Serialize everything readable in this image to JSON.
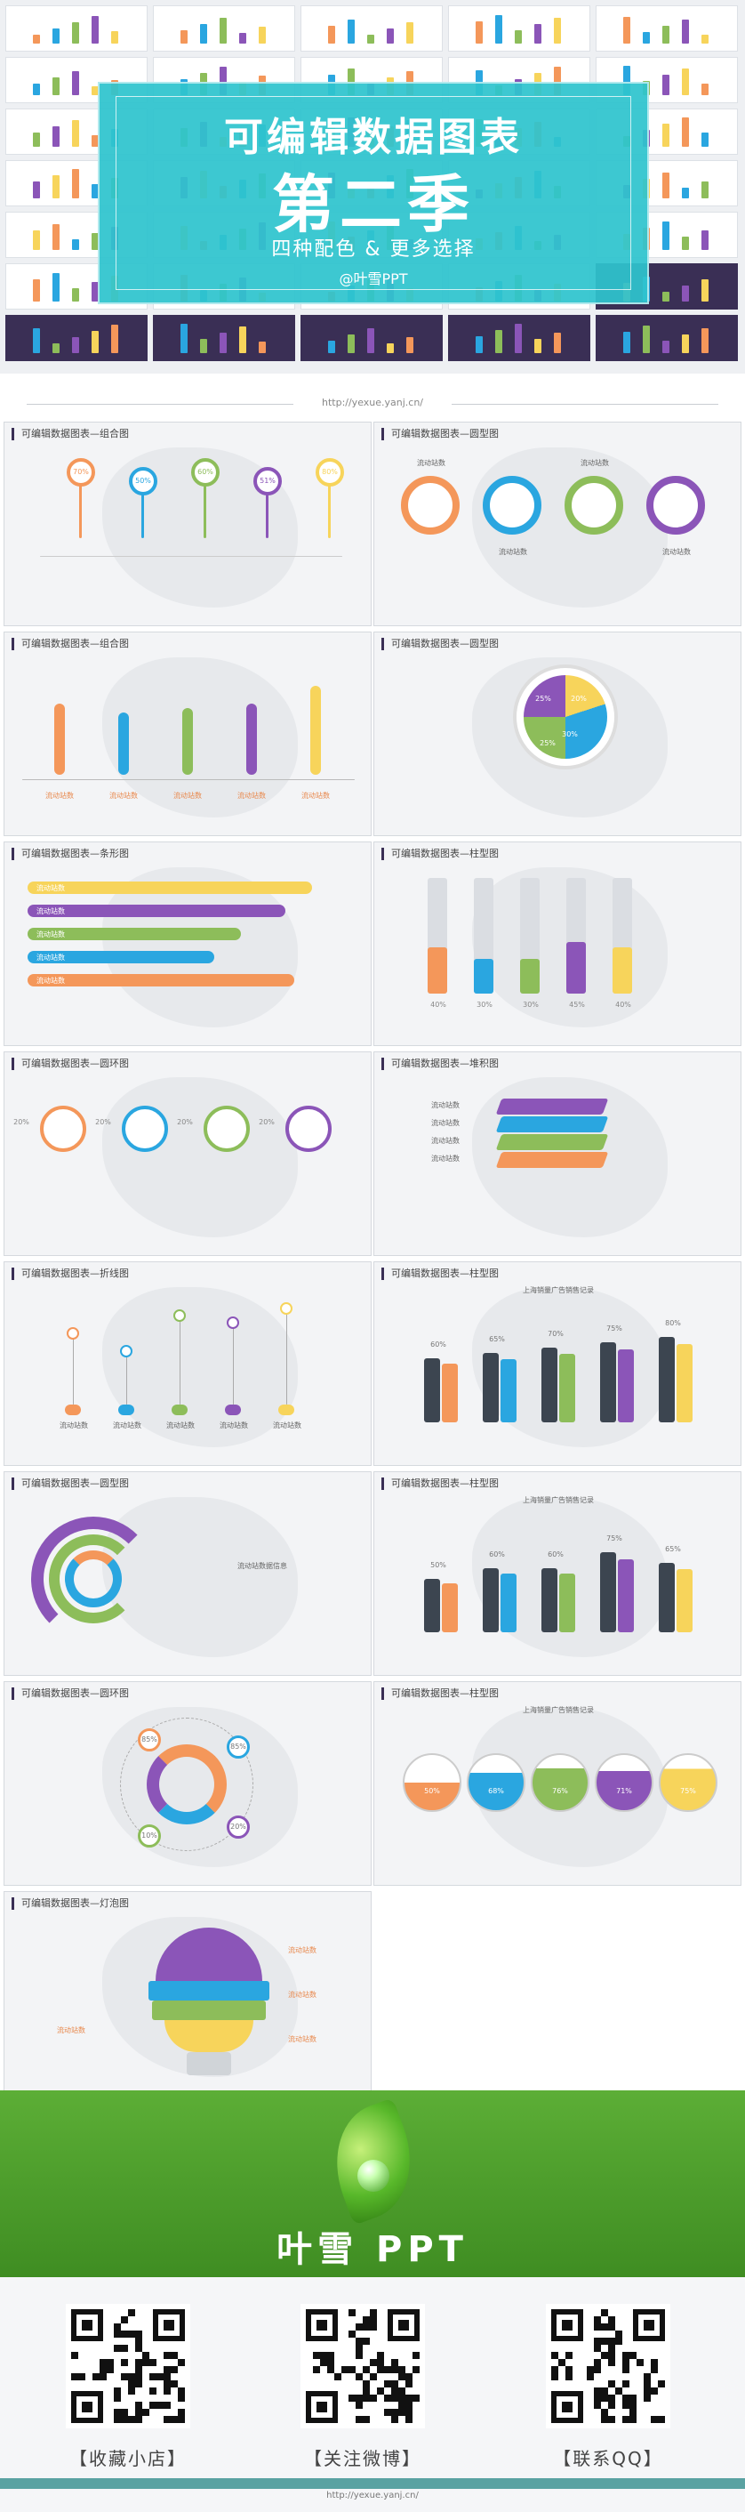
{
  "hero": {
    "title": "可编辑数据图表",
    "season": "第二季",
    "subtitle": "四种配色 & 更多选择",
    "brand": "@叶雪PPT",
    "url": "http://yexue.yanj.cn/"
  },
  "slides": [
    {
      "title": "可编辑数据图表—组合图",
      "labels": [
        "70%",
        "50%",
        "60%",
        "51%",
        "80%"
      ]
    },
    {
      "title": "可编辑数据图表—圆型图",
      "labels": [
        "流动站数",
        "流动站数",
        "流动站数",
        "流动站数"
      ]
    },
    {
      "title": "可编辑数据图表—组合图",
      "labels": [
        "流动站数",
        "流动站数",
        "流动站数",
        "流动站数",
        "流动站数"
      ]
    },
    {
      "title": "可编辑数据图表—圆型图",
      "labels": [
        "20%",
        "30%",
        "25%",
        "25%"
      ]
    },
    {
      "title": "可编辑数据图表—条形图",
      "labels": [
        "流动站数",
        "流动站数",
        "流动站数",
        "流动站数",
        "流动站数"
      ]
    },
    {
      "title": "可编辑数据图表—柱型图",
      "labels": [
        "40%",
        "30%",
        "30%",
        "45%",
        "40%"
      ]
    },
    {
      "title": "可编辑数据图表—圆环图",
      "labels": [
        "20%",
        "20%",
        "20%",
        "20%"
      ]
    },
    {
      "title": "可编辑数据图表—堆积图",
      "labels": [
        "流动站数",
        "流动站数",
        "流动站数",
        "流动站数"
      ]
    },
    {
      "title": "可编辑数据图表—折线图",
      "labels": [
        "流动站数",
        "流动站数",
        "流动站数",
        "流动站数",
        "流动站数"
      ]
    },
    {
      "title": "可编辑数据图表—柱型图",
      "labels": [
        "上海销量广告销售记录",
        "60%",
        "65%",
        "70%",
        "75%",
        "80%"
      ]
    },
    {
      "title": "可编辑数据图表—圆型图",
      "labels": [
        "流动站数据信息"
      ]
    },
    {
      "title": "可编辑数据图表—柱型图",
      "labels": [
        "上海销量广告销售记录",
        "50%",
        "60%",
        "60%",
        "75%",
        "65%"
      ]
    },
    {
      "title": "可编辑数据图表—圆环图",
      "labels": [
        "85%",
        "85%",
        "10%",
        "20%"
      ]
    },
    {
      "title": "可编辑数据图表—柱型图",
      "labels": [
        "上海销量广告销售记录",
        "50%",
        "68%",
        "76%",
        "71%",
        "75%"
      ]
    },
    {
      "title": "可编辑数据图表—灯泡图",
      "labels": [
        "流动站数",
        "流动站数",
        "流动站数",
        "流动站数"
      ]
    }
  ],
  "banner": {
    "brand": "叶雪 PPT"
  },
  "qr": {
    "labels": [
      "【收藏小店】",
      "【关注微博】",
      "【联系QQ】"
    ]
  },
  "footer": {
    "url": "http://yexue.yanj.cn/"
  },
  "colors": {
    "orange": "#f4975a",
    "blue": "#2aa6e0",
    "green": "#8dbd5a",
    "purple": "#8b55b8",
    "yellow": "#f7d45b",
    "teal": "#2ec4ce",
    "dark": "#3a2f55"
  }
}
